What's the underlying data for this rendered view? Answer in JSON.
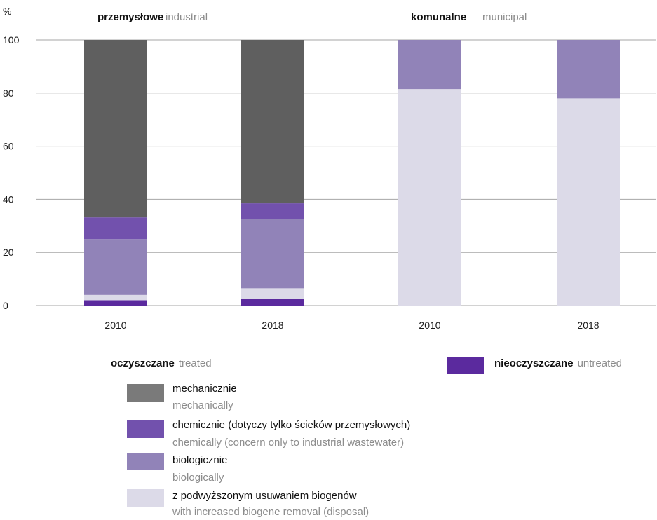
{
  "chart_data": {
    "type": "bar",
    "stacked": true,
    "unit_label": "%",
    "ylim": [
      0,
      100
    ],
    "yticks": [
      0,
      20,
      40,
      60,
      80,
      100
    ],
    "grid": true,
    "groups": [
      {
        "label_pl": "przemysłowe",
        "label_en": "industrial"
      },
      {
        "label_pl": "komunalne",
        "label_en": "municipal"
      }
    ],
    "categories": [
      "2010",
      "2018",
      "2010",
      "2018"
    ],
    "category_group": [
      0,
      0,
      1,
      1
    ],
    "series": [
      {
        "key": "untreated",
        "name": "nieoczyszczane",
        "name_en": "untreated",
        "color": "#5b2a9e",
        "values": [
          2,
          2.5,
          0,
          0
        ]
      },
      {
        "key": "increased_biogene",
        "name": "z podwyższonym usuwaniem biogenów",
        "name_en": "with increased biogene removal (disposal)",
        "color": "#dcdae8",
        "values": [
          2,
          4,
          81.5,
          78
        ]
      },
      {
        "key": "biological",
        "name": "biologicznie",
        "name_en": "biologically",
        "color": "#9183b8",
        "values": [
          21,
          26,
          18.5,
          22
        ]
      },
      {
        "key": "chemical",
        "name": "chemicznie (dotyczy tylko ścieków przemysłowych)",
        "name_en": "chemically (concern only to industrial wastewater)",
        "color": "#7251ad",
        "values": [
          8.2,
          6,
          0,
          0
        ]
      },
      {
        "key": "mechanical",
        "name": "mechanicznie",
        "name_en": "mechanically",
        "color": "#5f5f5f",
        "values": [
          66.8,
          61.5,
          0,
          0
        ]
      }
    ]
  },
  "legend": {
    "treated_pl": "oczyszczane",
    "treated_en": "treated",
    "untreated_pl": "nieoczyszczane",
    "untreated_en": "untreated",
    "items": [
      {
        "pl": "mechanicznie",
        "en": "mechanically",
        "color": "#7a7a7a"
      },
      {
        "pl": "chemicznie (dotyczy tylko ścieków przemysłowych)",
        "en": "chemically (concern only to industrial wastewater)",
        "color": "#7251ad"
      },
      {
        "pl": "biologicznie",
        "en": "biologically",
        "color": "#9183b8"
      },
      {
        "pl": "z podwyższonym usuwaniem biogenów",
        "en": "with increased biogene removal (disposal)",
        "color": "#dcdae8"
      }
    ],
    "untreated_color": "#5b2a9e"
  }
}
